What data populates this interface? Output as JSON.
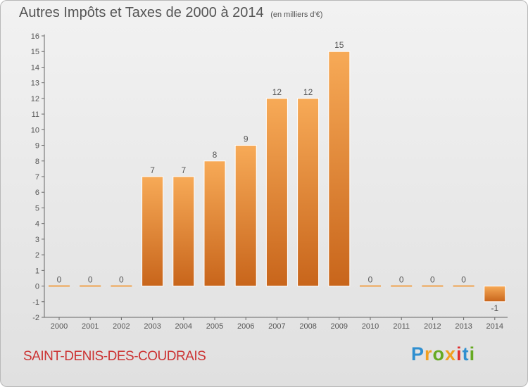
{
  "header": {
    "title": "Autres Impôts et Taxes de 2000 à 2014",
    "subtitle": "(en milliers d'€)"
  },
  "footer": {
    "commune": "SAINT-DENIS-DES-COUDRAIS",
    "brand": {
      "text": "Proxiti",
      "letters": [
        {
          "char": "P",
          "color": "#2f8fd0"
        },
        {
          "char": "r",
          "color": "#f0a020"
        },
        {
          "char": "o",
          "color": "#66aa22"
        },
        {
          "char": "x",
          "color": "#f0a020"
        },
        {
          "char": "i",
          "color": "#e03030"
        },
        {
          "char": "t",
          "color": "#2f8fd0"
        },
        {
          "char": "i",
          "color": "#66aa22"
        }
      ]
    }
  },
  "colors": {
    "bar_top": "#f7aa57",
    "bar_bottom": "#c8651b",
    "zero_line": "#f0a24d",
    "commune": "#cc3333",
    "text": "#555555"
  },
  "chart_data": {
    "type": "bar",
    "title": "Autres Impôts et Taxes de 2000 à 2014",
    "subtitle": "(en milliers d'€)",
    "categories": [
      "2000",
      "2001",
      "2002",
      "2003",
      "2004",
      "2005",
      "2006",
      "2007",
      "2008",
      "2009",
      "2010",
      "2011",
      "2012",
      "2013",
      "2014"
    ],
    "values": [
      0,
      0,
      0,
      7,
      7,
      8,
      9,
      12,
      12,
      15,
      0,
      0,
      0,
      0,
      -1
    ],
    "value_labels": [
      "0",
      "0",
      "0",
      "7",
      "7",
      "8",
      "9",
      "12",
      "12",
      "15",
      "0",
      "0",
      "0",
      "0",
      "-1"
    ],
    "yticks": [
      "16",
      "15",
      "14",
      "13",
      "12",
      "11",
      "10",
      "9",
      "8",
      "7",
      "6",
      "5",
      "4",
      "3",
      "2",
      "1",
      "0",
      "-1",
      "-2"
    ],
    "ylim": [
      -2,
      16
    ],
    "grid": false,
    "xlabel": "",
    "ylabel": ""
  }
}
